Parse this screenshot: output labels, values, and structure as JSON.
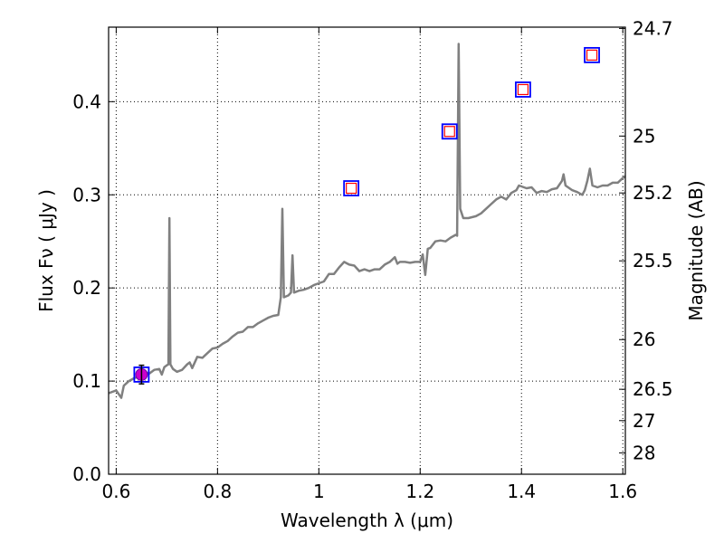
{
  "chart_data": {
    "type": "line",
    "title": "",
    "xlabel": "Wavelength  λ (μm)",
    "ylabel": "Flux  Fν  ( μJy )",
    "y2label": "Magnitude (AB)",
    "xlim": [
      0.585,
      1.605
    ],
    "ylim": [
      0.0,
      0.48
    ],
    "grid": true,
    "x_ticks": [
      {
        "value": 0.6,
        "label": "0.6"
      },
      {
        "value": 0.8,
        "label": "0.8"
      },
      {
        "value": 1.0,
        "label": "1"
      },
      {
        "value": 1.2,
        "label": "1.2"
      },
      {
        "value": 1.4,
        "label": "1.4"
      },
      {
        "value": 1.6,
        "label": "1.6"
      }
    ],
    "y_ticks": [
      {
        "value": 0.0,
        "label": "0.0"
      },
      {
        "value": 0.1,
        "label": "0.1"
      },
      {
        "value": 0.2,
        "label": "0.2"
      },
      {
        "value": 0.3,
        "label": "0.3"
      },
      {
        "value": 0.4,
        "label": "0.4"
      }
    ],
    "y2_ticks": [
      {
        "value": 24.7,
        "label": "24.7"
      },
      {
        "value": 25.0,
        "label": "25"
      },
      {
        "value": 25.2,
        "label": "25.2"
      },
      {
        "value": 25.5,
        "label": "25.5"
      },
      {
        "value": 26.0,
        "label": "26"
      },
      {
        "value": 26.5,
        "label": "26.5"
      },
      {
        "value": 27.0,
        "label": "27"
      },
      {
        "value": 28.0,
        "label": "28"
      }
    ],
    "series": [
      {
        "kind": "spectrum",
        "color": "#808080",
        "points": [
          [
            0.585,
            0.087
          ],
          [
            0.6,
            0.09
          ],
          [
            0.61,
            0.082
          ],
          [
            0.615,
            0.095
          ],
          [
            0.625,
            0.1
          ],
          [
            0.635,
            0.103
          ],
          [
            0.645,
            0.105
          ],
          [
            0.655,
            0.11
          ],
          [
            0.665,
            0.108
          ],
          [
            0.675,
            0.112
          ],
          [
            0.685,
            0.113
          ],
          [
            0.69,
            0.107
          ],
          [
            0.695,
            0.115
          ],
          [
            0.7,
            0.117
          ],
          [
            0.703,
            0.118
          ],
          [
            0.705,
            0.275
          ],
          [
            0.707,
            0.118
          ],
          [
            0.712,
            0.113
          ],
          [
            0.72,
            0.11
          ],
          [
            0.73,
            0.112
          ],
          [
            0.74,
            0.118
          ],
          [
            0.745,
            0.12
          ],
          [
            0.75,
            0.114
          ],
          [
            0.76,
            0.126
          ],
          [
            0.77,
            0.125
          ],
          [
            0.78,
            0.13
          ],
          [
            0.79,
            0.135
          ],
          [
            0.8,
            0.136
          ],
          [
            0.81,
            0.14
          ],
          [
            0.82,
            0.143
          ],
          [
            0.83,
            0.148
          ],
          [
            0.84,
            0.152
          ],
          [
            0.85,
            0.153
          ],
          [
            0.86,
            0.158
          ],
          [
            0.87,
            0.158
          ],
          [
            0.88,
            0.162
          ],
          [
            0.89,
            0.165
          ],
          [
            0.9,
            0.168
          ],
          [
            0.91,
            0.17
          ],
          [
            0.92,
            0.171
          ],
          [
            0.925,
            0.19
          ],
          [
            0.928,
            0.285
          ],
          [
            0.931,
            0.19
          ],
          [
            0.94,
            0.192
          ],
          [
            0.945,
            0.195
          ],
          [
            0.948,
            0.235
          ],
          [
            0.951,
            0.195
          ],
          [
            0.96,
            0.197
          ],
          [
            0.97,
            0.198
          ],
          [
            0.98,
            0.2
          ],
          [
            0.99,
            0.203
          ],
          [
            1.0,
            0.205
          ],
          [
            1.01,
            0.207
          ],
          [
            1.02,
            0.215
          ],
          [
            1.03,
            0.215
          ],
          [
            1.04,
            0.222
          ],
          [
            1.05,
            0.228
          ],
          [
            1.06,
            0.225
          ],
          [
            1.07,
            0.224
          ],
          [
            1.08,
            0.218
          ],
          [
            1.09,
            0.22
          ],
          [
            1.1,
            0.218
          ],
          [
            1.11,
            0.22
          ],
          [
            1.12,
            0.22
          ],
          [
            1.13,
            0.225
          ],
          [
            1.14,
            0.228
          ],
          [
            1.15,
            0.233
          ],
          [
            1.155,
            0.226
          ],
          [
            1.16,
            0.228
          ],
          [
            1.17,
            0.228
          ],
          [
            1.18,
            0.227
          ],
          [
            1.19,
            0.228
          ],
          [
            1.2,
            0.228
          ],
          [
            1.205,
            0.236
          ],
          [
            1.21,
            0.214
          ],
          [
            1.215,
            0.242
          ],
          [
            1.22,
            0.243
          ],
          [
            1.23,
            0.25
          ],
          [
            1.24,
            0.251
          ],
          [
            1.25,
            0.25
          ],
          [
            1.26,
            0.254
          ],
          [
            1.27,
            0.257
          ],
          [
            1.273,
            0.256
          ],
          [
            1.276,
            0.462
          ],
          [
            1.279,
            0.285
          ],
          [
            1.285,
            0.275
          ],
          [
            1.295,
            0.275
          ],
          [
            1.31,
            0.277
          ],
          [
            1.32,
            0.28
          ],
          [
            1.33,
            0.285
          ],
          [
            1.34,
            0.29
          ],
          [
            1.35,
            0.295
          ],
          [
            1.36,
            0.298
          ],
          [
            1.37,
            0.295
          ],
          [
            1.38,
            0.302
          ],
          [
            1.39,
            0.305
          ],
          [
            1.395,
            0.31
          ],
          [
            1.41,
            0.307
          ],
          [
            1.42,
            0.308
          ],
          [
            1.43,
            0.302
          ],
          [
            1.44,
            0.304
          ],
          [
            1.45,
            0.303
          ],
          [
            1.46,
            0.306
          ],
          [
            1.47,
            0.307
          ],
          [
            1.48,
            0.315
          ],
          [
            1.483,
            0.322
          ],
          [
            1.487,
            0.31
          ],
          [
            1.5,
            0.305
          ],
          [
            1.51,
            0.303
          ],
          [
            1.52,
            0.3
          ],
          [
            1.525,
            0.305
          ],
          [
            1.53,
            0.315
          ],
          [
            1.535,
            0.328
          ],
          [
            1.54,
            0.31
          ],
          [
            1.55,
            0.308
          ],
          [
            1.56,
            0.31
          ],
          [
            1.57,
            0.31
          ],
          [
            1.58,
            0.313
          ],
          [
            1.59,
            0.313
          ],
          [
            1.6,
            0.318
          ],
          [
            1.605,
            0.32
          ]
        ]
      },
      {
        "kind": "photometry",
        "outer_color": "#0000ff",
        "inner_color": "#ff0000",
        "points": [
          {
            "x": 1.064,
            "y": 0.307
          },
          {
            "x": 1.258,
            "y": 0.368
          },
          {
            "x": 1.403,
            "y": 0.413
          },
          {
            "x": 1.539,
            "y": 0.45
          }
        ]
      },
      {
        "kind": "measured",
        "color": "#cc00cc",
        "box_color": "#0000ff",
        "points": [
          {
            "x": 0.65,
            "y": 0.107,
            "err": 0.01
          }
        ]
      }
    ]
  }
}
